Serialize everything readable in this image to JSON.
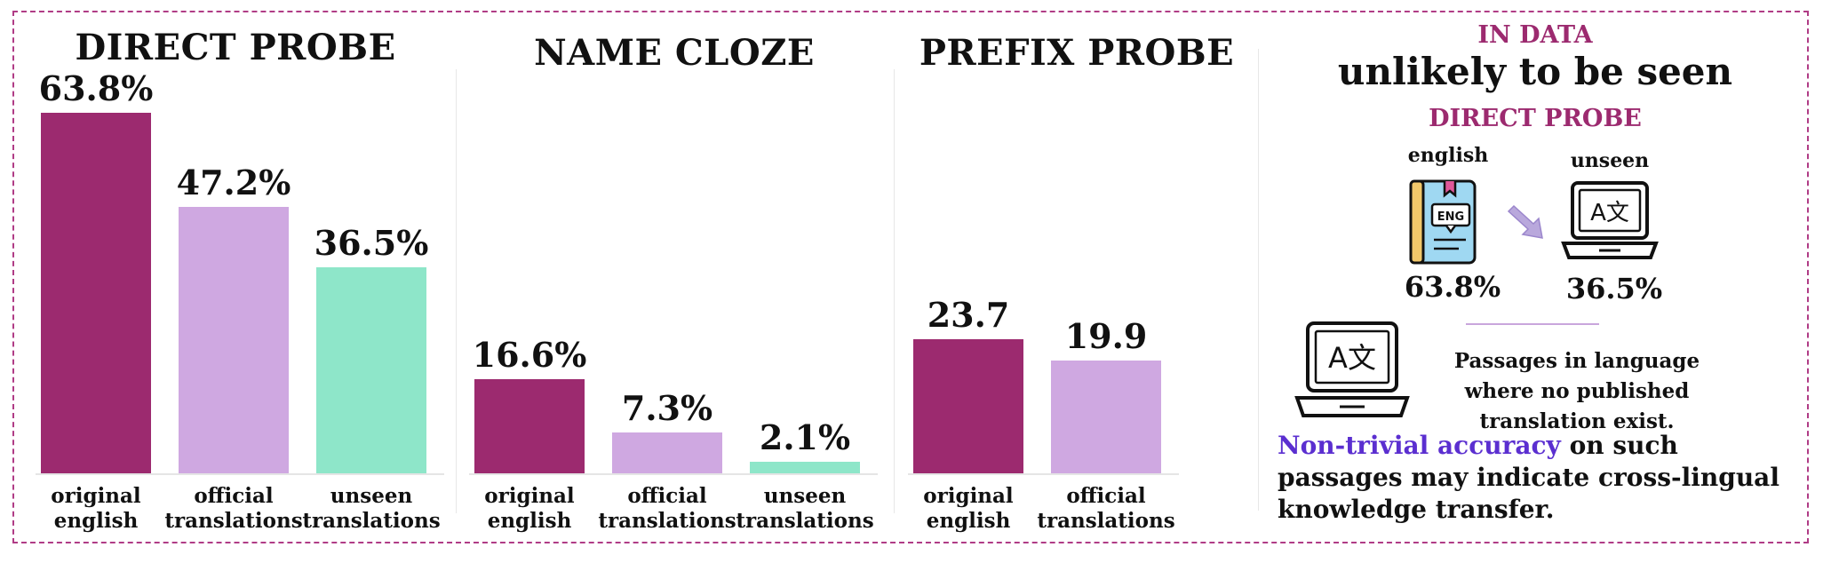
{
  "colors": {
    "frame": "#b03c86",
    "original_english": "#9c2a6f",
    "official_translations": "#cfa8e1",
    "unseen_translations": "#8ee6c9",
    "accent_magenta": "#9c2a6f",
    "accent_purple": "#5b2fd0"
  },
  "chart_data": [
    {
      "type": "bar",
      "title": "DIRECT PROBE",
      "categories": [
        "original english",
        "official translations",
        "unseen translations"
      ],
      "category_lines": [
        [
          "original",
          "english"
        ],
        [
          "official",
          "translations"
        ],
        [
          "unseen",
          "translations"
        ]
      ],
      "values": [
        63.8,
        47.2,
        36.5
      ],
      "value_labels": [
        "63.8%",
        "47.2%",
        "36.5%"
      ],
      "ylim": [
        0,
        63.8
      ]
    },
    {
      "type": "bar",
      "title": "NAME CLOZE",
      "categories": [
        "original english",
        "official translations",
        "unseen translations"
      ],
      "category_lines": [
        [
          "original",
          "english"
        ],
        [
          "official",
          "translations"
        ],
        [
          "unseen",
          "translations"
        ]
      ],
      "values": [
        16.6,
        7.3,
        2.1
      ],
      "value_labels": [
        "16.6%",
        "7.3%",
        "2.1%"
      ],
      "ylim": [
        0,
        63.8
      ]
    },
    {
      "type": "bar",
      "title": "PREFIX PROBE",
      "categories": [
        "original english",
        "official translations"
      ],
      "category_lines": [
        [
          "original",
          "english"
        ],
        [
          "official",
          "translations"
        ]
      ],
      "values": [
        23.7,
        19.9
      ],
      "value_labels": [
        "23.7",
        "19.9"
      ],
      "ylim": [
        0,
        63.8
      ]
    }
  ],
  "info": {
    "in_data": "IN DATA",
    "unlikely": "unlikely to be seen",
    "sub_title": "DIRECT PROBE",
    "english_label": "english",
    "unseen_label": "unseen",
    "english_value": "63.8%",
    "unseen_value": "36.5%",
    "book_badge": "ENG",
    "translate_glyph": "A文",
    "passages_text": "Passages in language where no published translation exist.",
    "conclusion_highlight": "Non-trivial accuracy",
    "conclusion_rest": " on such passages may indicate cross-lingual knowledge transfer.",
    "icons": [
      "book-icon",
      "arrow-icon",
      "laptop-translate-icon"
    ]
  }
}
